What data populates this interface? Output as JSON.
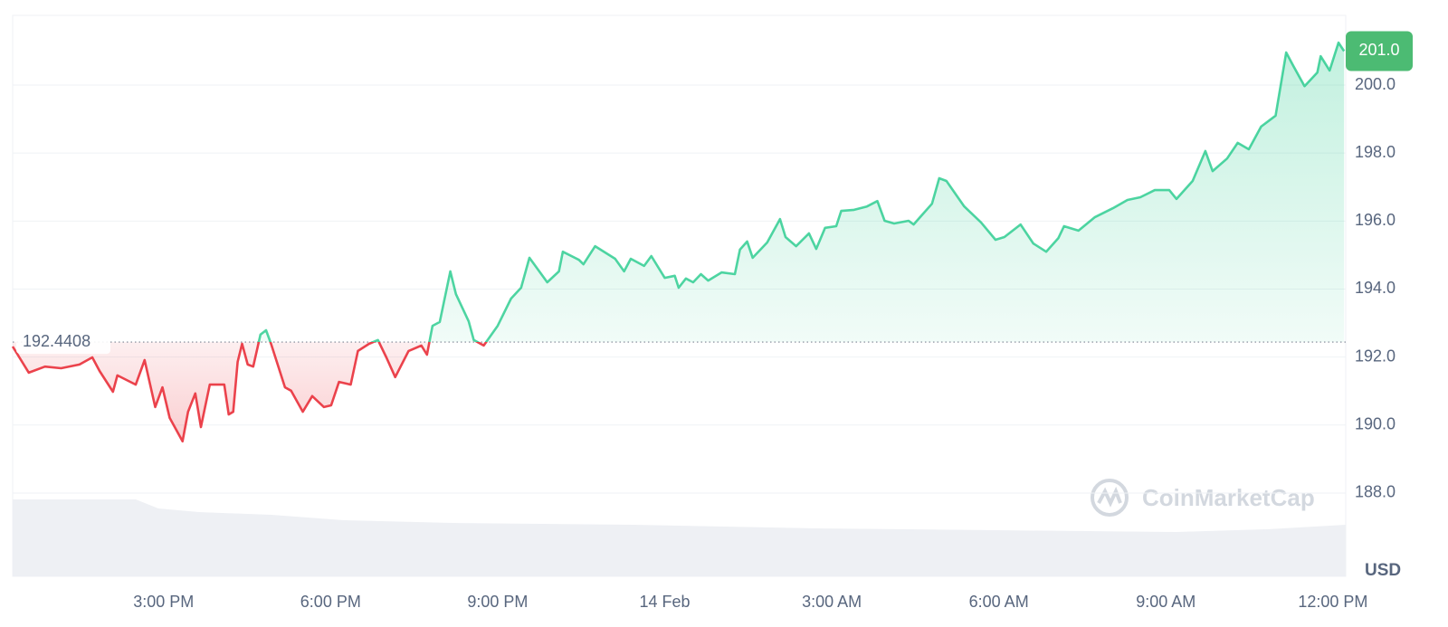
{
  "chart_data": {
    "type": "line",
    "x": [
      12.29,
      12.58,
      12.87,
      13.16,
      13.49,
      13.72,
      13.85,
      14.09,
      14.17,
      14.5,
      14.66,
      14.85,
      14.98,
      15.11,
      15.34,
      15.44,
      15.57,
      15.67,
      15.83,
      16.09,
      16.17,
      16.25,
      16.33,
      16.41,
      16.51,
      16.61,
      16.74,
      16.84,
      16.93,
      17.18,
      17.29,
      17.5,
      17.67,
      17.88,
      18.01,
      18.15,
      18.36,
      18.49,
      18.69,
      18.85,
      19.0,
      19.16,
      19.4,
      19.63,
      19.73,
      19.83,
      19.96,
      20.15,
      20.25,
      20.48,
      20.57,
      20.75,
      21.0,
      21.24,
      21.42,
      21.57,
      21.89,
      22.1,
      22.17,
      22.46,
      22.54,
      22.75,
      23.11,
      23.27,
      23.39,
      23.63,
      23.76,
      24.0,
      24.18,
      24.25,
      24.38,
      24.51,
      24.65,
      24.78,
      25.02,
      25.26,
      25.35,
      25.48,
      25.58,
      25.84,
      26.07,
      26.17,
      26.36,
      26.59,
      26.72,
      26.88,
      27.08,
      27.17,
      27.4,
      27.63,
      27.82,
      27.95,
      28.12,
      28.38,
      28.47,
      28.8,
      28.93,
      29.06,
      29.38,
      29.68,
      29.94,
      30.1,
      30.39,
      30.62,
      30.85,
      31.07,
      31.17,
      31.43,
      31.72,
      32.05,
      32.31,
      32.54,
      32.8,
      33.06,
      33.19,
      33.48,
      33.71,
      33.84,
      34.1,
      34.29,
      34.49,
      34.71,
      34.97,
      35.16,
      35.29,
      35.49,
      35.72,
      35.78,
      35.94,
      36.1,
      36.2
    ],
    "series": [
      {
        "name": "Price",
        "values": [
          192.31,
          191.54,
          191.72,
          191.67,
          191.78,
          191.99,
          191.59,
          190.98,
          191.46,
          191.19,
          191.91,
          190.53,
          191.11,
          190.21,
          189.52,
          190.39,
          190.93,
          189.94,
          191.19,
          191.19,
          190.31,
          190.39,
          191.86,
          192.39,
          191.78,
          191.72,
          192.66,
          192.79,
          192.39,
          191.11,
          191.01,
          190.39,
          190.85,
          190.53,
          190.58,
          191.27,
          191.19,
          192.18,
          192.39,
          192.5,
          191.99,
          191.41,
          192.18,
          192.34,
          192.07,
          192.92,
          193.03,
          194.52,
          193.85,
          193.05,
          192.5,
          192.34,
          192.92,
          193.72,
          194.04,
          194.92,
          194.2,
          194.52,
          195.1,
          194.86,
          194.73,
          195.26,
          194.89,
          194.52,
          194.89,
          194.68,
          194.97,
          194.33,
          194.39,
          194.04,
          194.31,
          194.2,
          194.44,
          194.25,
          194.49,
          194.44,
          195.16,
          195.4,
          194.92,
          195.37,
          196.06,
          195.53,
          195.26,
          195.64,
          195.18,
          195.8,
          195.85,
          196.3,
          196.33,
          196.43,
          196.59,
          196.01,
          195.93,
          196.01,
          195.9,
          196.51,
          197.26,
          197.18,
          196.43,
          195.96,
          195.45,
          195.53,
          195.9,
          195.34,
          195.1,
          195.5,
          195.85,
          195.72,
          196.11,
          196.38,
          196.62,
          196.7,
          196.91,
          196.91,
          196.65,
          197.18,
          198.06,
          197.47,
          197.84,
          198.3,
          198.11,
          198.78,
          199.1,
          200.96,
          200.56,
          199.97,
          200.37,
          200.85,
          200.43,
          201.25,
          201.0
        ]
      }
    ],
    "up_color": "#16c784",
    "down_color": "#ea3943",
    "baseline": 192.4408,
    "price_tag": {
      "value": 201.0,
      "label": "201.0"
    },
    "xlim": [
      12.29,
      36.23
    ],
    "xticks": [
      {
        "value": 15,
        "label": "3:00 PM"
      },
      {
        "value": 18,
        "label": "6:00 PM"
      },
      {
        "value": 21,
        "label": "9:00 PM"
      },
      {
        "value": 24,
        "label": "14 Feb"
      },
      {
        "value": 27,
        "label": "3:00 AM"
      },
      {
        "value": 30,
        "label": "6:00 AM"
      },
      {
        "value": 33,
        "label": "9:00 AM"
      },
      {
        "value": 36,
        "label": "12:00 PM"
      }
    ],
    "ylim": [
      185.55,
      202.05
    ],
    "yticks": [
      {
        "value": 188,
        "label": "188.0"
      },
      {
        "value": 190,
        "label": "190.0"
      },
      {
        "value": 192,
        "label": "192.0"
      },
      {
        "value": 194,
        "label": "194.0"
      },
      {
        "value": 196,
        "label": "196.0"
      },
      {
        "value": 198,
        "label": "198.0"
      },
      {
        "value": 200,
        "label": "200.0"
      }
    ],
    "currency": "USD",
    "watermark": "CoinMarketCap",
    "grid": true
  }
}
